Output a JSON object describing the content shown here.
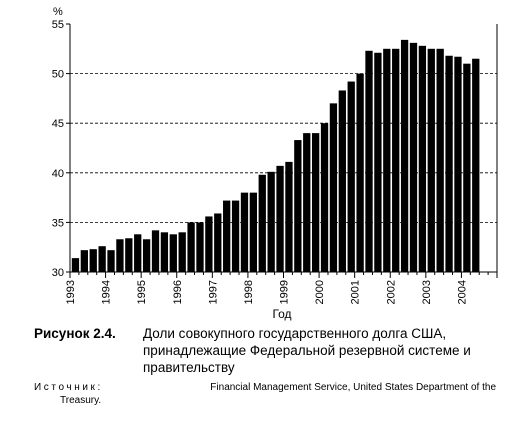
{
  "chart_data": {
    "type": "bar",
    "title": "",
    "xlabel": "Год",
    "ylabel": "%",
    "ylim": [
      30,
      55
    ],
    "yticks": [
      30,
      35,
      40,
      45,
      50,
      55
    ],
    "grid": "dashed horizontal at 35, 40, 45, 50",
    "year_labels": [
      "1993",
      "1994",
      "1995",
      "1996",
      "1997",
      "1998",
      "1999",
      "2000",
      "2001",
      "2002",
      "2003",
      "2004"
    ],
    "bars_per_year": 4,
    "values": [
      31.4,
      32.2,
      32.3,
      32.6,
      32.2,
      33.3,
      33.4,
      33.8,
      33.3,
      34.2,
      34.0,
      33.8,
      34.0,
      35.0,
      35.0,
      35.6,
      35.9,
      37.2,
      37.2,
      38.0,
      38.0,
      39.8,
      40.1,
      40.7,
      41.1,
      43.3,
      44.0,
      44.0,
      45.0,
      47.0,
      48.3,
      49.2,
      50.0,
      52.3,
      52.1,
      52.5,
      52.5,
      53.4,
      53.1,
      52.8,
      52.5,
      52.5,
      51.8,
      51.7,
      51.0,
      51.5
    ]
  },
  "colors": {
    "bar": "#000000",
    "grid": "#000000",
    "background": "#ffffff"
  },
  "caption": {
    "label": "Рисунок 2.4.",
    "text": "Доли совокупного государственного долга США, принадлежащие Федеральной резервной системе и правительству"
  },
  "source": {
    "label": "Источник:",
    "line1": "Financial Management Service, United States Department of the",
    "line2": "Treasury."
  }
}
